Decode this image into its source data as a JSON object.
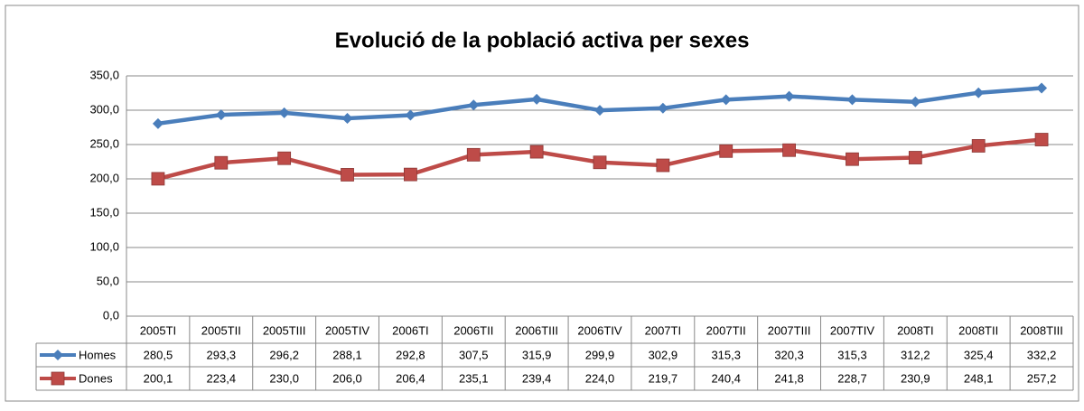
{
  "chart_data": {
    "type": "line",
    "title": "Evolució de la població activa per sexes",
    "categories": [
      "2005TI",
      "2005TII",
      "2005TIII",
      "2005TIV",
      "2006TI",
      "2006TII",
      "2006TIII",
      "2006TIV",
      "2007TI",
      "2007TII",
      "2007TIII",
      "2007TIV",
      "2008TI",
      "2008TII",
      "2008TIII"
    ],
    "series": [
      {
        "name": "Homes",
        "color": "#4a7ebb",
        "marker": "diamond",
        "values": [
          280.5,
          293.3,
          296.2,
          288.1,
          292.8,
          307.5,
          315.9,
          299.9,
          302.9,
          315.3,
          320.3,
          315.3,
          312.2,
          325.4,
          332.2
        ],
        "value_labels": [
          "280,5",
          "293,3",
          "296,2",
          "288,1",
          "292,8",
          "307,5",
          "315,9",
          "299,9",
          "302,9",
          "315,3",
          "320,3",
          "315,3",
          "312,2",
          "325,4",
          "332,2"
        ]
      },
      {
        "name": "Dones",
        "color": "#be4b48",
        "marker": "square",
        "values": [
          200.1,
          223.4,
          230.0,
          206.0,
          206.4,
          235.1,
          239.4,
          224.0,
          219.7,
          240.4,
          241.8,
          228.7,
          230.9,
          248.1,
          257.2
        ],
        "value_labels": [
          "200,1",
          "223,4",
          "230,0",
          "206,0",
          "206,4",
          "235,1",
          "239,4",
          "224,0",
          "219,7",
          "240,4",
          "241,8",
          "228,7",
          "230,9",
          "248,1",
          "257,2"
        ]
      }
    ],
    "ylim": [
      0,
      350
    ],
    "yticks": [
      {
        "value": 0,
        "label": "0,0"
      },
      {
        "value": 50,
        "label": "50,0"
      },
      {
        "value": 100,
        "label": "100,0"
      },
      {
        "value": 150,
        "label": "150,0"
      },
      {
        "value": 200,
        "label": "200,0"
      },
      {
        "value": 250,
        "label": "250,0"
      },
      {
        "value": 300,
        "label": "300,0"
      },
      {
        "value": 350,
        "label": "350,0"
      }
    ],
    "grid": true
  }
}
